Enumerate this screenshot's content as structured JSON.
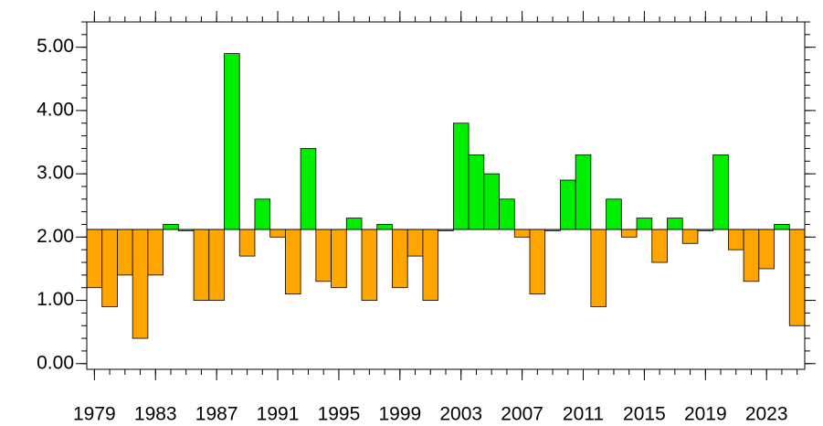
{
  "chart_data": {
    "type": "bar",
    "categories": [
      1979,
      1980,
      1981,
      1982,
      1983,
      1984,
      1985,
      1986,
      1987,
      1988,
      1989,
      1990,
      1991,
      1992,
      1993,
      1994,
      1995,
      1996,
      1997,
      1998,
      1999,
      2000,
      2001,
      2002,
      2003,
      2004,
      2005,
      2006,
      2007,
      2008,
      2009,
      2010,
      2011,
      2012,
      2013,
      2014,
      2015,
      2016,
      2017,
      2018,
      2019,
      2020,
      2021,
      2022,
      2023,
      2024,
      2025
    ],
    "values": [
      1.2,
      0.9,
      1.4,
      0.4,
      1.4,
      2.2,
      2.1,
      1.0,
      1.0,
      4.9,
      1.7,
      2.6,
      2.0,
      1.1,
      3.4,
      1.3,
      1.2,
      2.3,
      1.0,
      2.2,
      1.2,
      1.7,
      1.0,
      2.1,
      3.8,
      3.3,
      3.0,
      2.6,
      2.0,
      1.1,
      2.1,
      2.9,
      3.3,
      0.9,
      2.6,
      2.0,
      2.3,
      1.6,
      2.3,
      1.9,
      2.1,
      3.3,
      1.8,
      1.3,
      1.5,
      2.2,
      0.6
    ],
    "baseline": 2.12,
    "above_color": "#00ee00",
    "below_color": "#ffa500",
    "xlim": [
      1978.5,
      2025.5
    ],
    "xticks": [
      1979,
      1983,
      1987,
      1991,
      1995,
      1999,
      2003,
      2007,
      2011,
      2015,
      2019,
      2023
    ],
    "ylim": [
      -0.09,
      5.4
    ],
    "yticks": [
      {
        "value": 0,
        "label": "0.00"
      },
      {
        "value": 1,
        "label": "1.00"
      },
      {
        "value": 2,
        "label": "2.00"
      },
      {
        "value": 3,
        "label": "3.00"
      },
      {
        "value": 4,
        "label": "4.00"
      },
      {
        "value": 5,
        "label": "5.00"
      }
    ]
  }
}
